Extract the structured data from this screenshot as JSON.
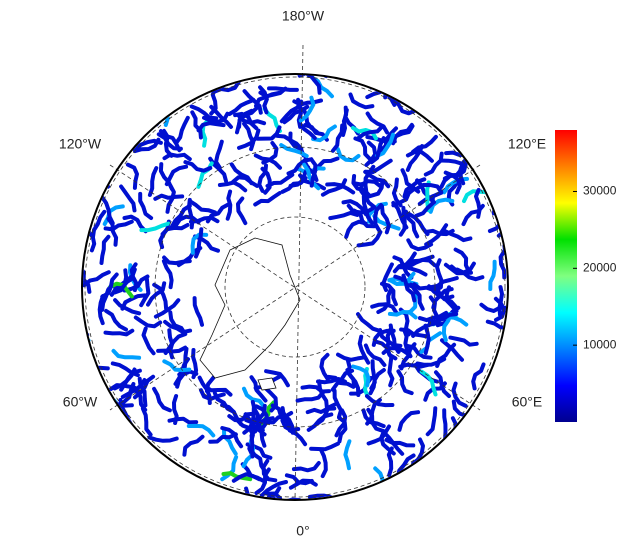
{
  "map": {
    "labels": {
      "top": "180°W",
      "upper_right": "120°E",
      "lower_right": "60°E",
      "bottom": "0°",
      "lower_left": "60°W",
      "upper_left": "120°W"
    },
    "colorbar": {
      "lim": [
        0,
        38000
      ],
      "ticks": [
        10000,
        20000,
        30000
      ],
      "colors": [
        "#00008f",
        "#0000ff",
        "#0080ff",
        "#00ffff",
        "#80ff80",
        "#00e000",
        "#ffff00",
        "#ff8000",
        "#ff0000"
      ]
    }
  }
}
